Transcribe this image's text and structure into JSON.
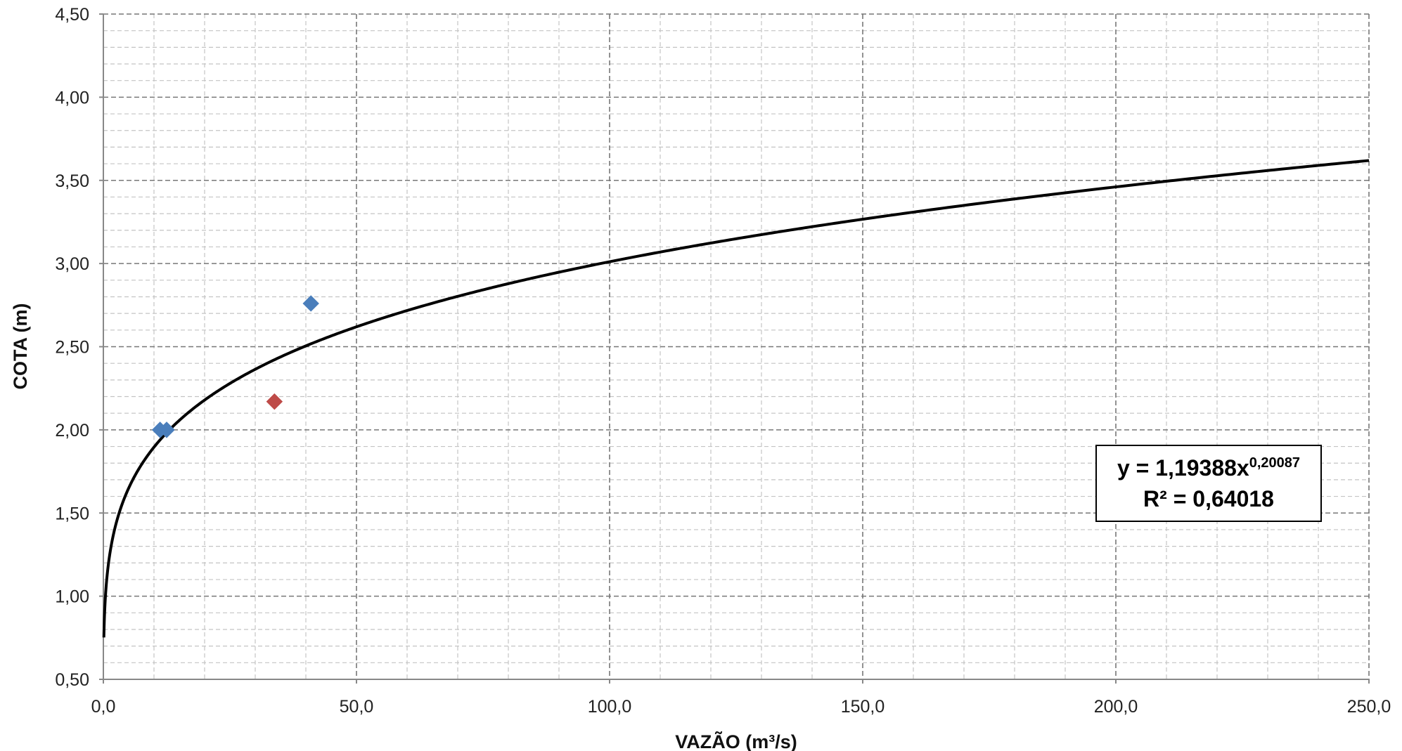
{
  "chart_data": {
    "type": "scatter",
    "title": "",
    "xlabel": "VAZÃO (m³/s)",
    "ylabel": "COTA (m)",
    "xlim": [
      0,
      250
    ],
    "ylim": [
      0.5,
      4.5
    ],
    "x_major_step": 50,
    "x_minor_step": 10,
    "y_major_step": 0.5,
    "y_minor_step": 0.1,
    "x_ticks": [
      "0,0",
      "50,0",
      "100,0",
      "150,0",
      "200,0",
      "250,0"
    ],
    "y_ticks": [
      "0,50",
      "1,00",
      "1,50",
      "2,00",
      "2,50",
      "3,00",
      "3,50",
      "4,00",
      "4,50"
    ],
    "grid": true,
    "series": [
      {
        "color": "#4a7ebb",
        "marker": "diamond",
        "points": [
          [
            11.2,
            2.0
          ],
          [
            12.5,
            2.0
          ],
          [
            41.0,
            2.76
          ]
        ]
      },
      {
        "color": "#be4b48",
        "marker": "diamond",
        "points": [
          [
            33.8,
            2.17
          ]
        ]
      }
    ],
    "trendline": {
      "type": "power",
      "coefficient": 1.19388,
      "exponent": 0.20087,
      "r_squared": 0.64018,
      "x_range": [
        0.1,
        250
      ],
      "color": "#000000"
    },
    "equation": {
      "lhs": "y = 1,19388x",
      "exponent": "0,20087",
      "r2": "R² = 0,64018"
    }
  }
}
